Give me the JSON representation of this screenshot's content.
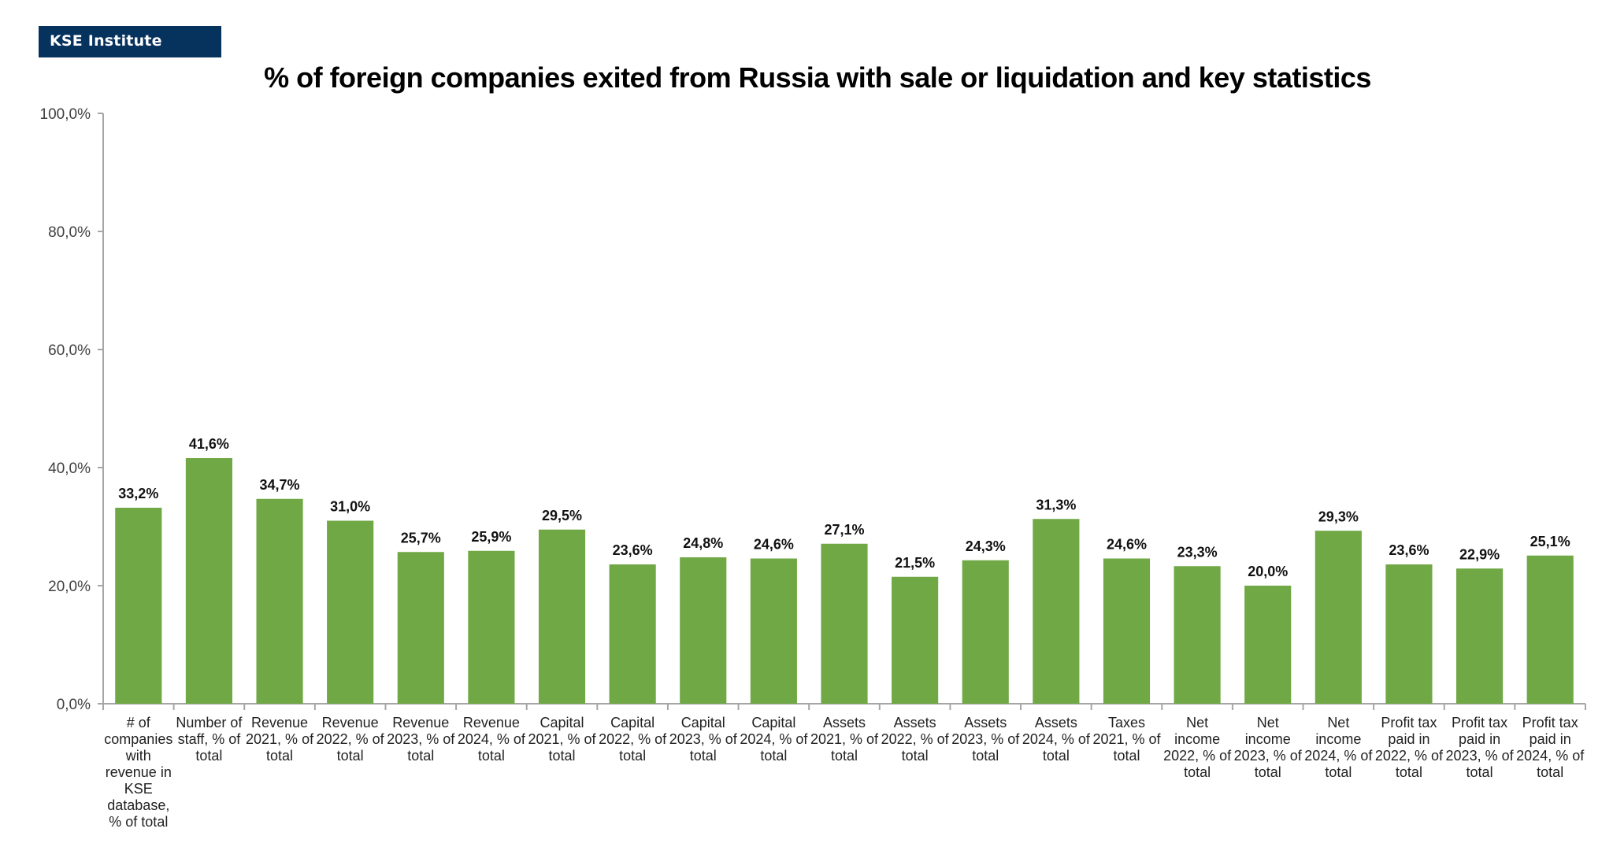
{
  "logo": {
    "text": "KSE Institute",
    "color": "#06325e"
  },
  "chart_data": {
    "type": "bar",
    "title": "% of foreign companies exited from Russia with sale or liquidation and key statistics",
    "xlabel": "",
    "ylabel": "",
    "ylim": [
      0,
      100
    ],
    "yticks": [
      0,
      20,
      40,
      60,
      80,
      100
    ],
    "ytick_labels": [
      "0,0%",
      "20,0%",
      "40,0%",
      "60,0%",
      "80,0%",
      "100,0%"
    ],
    "grid": false,
    "legend": "none",
    "bar_color": "#70a845",
    "categories": [
      [
        "# of",
        "companies",
        "with",
        "revenue in",
        "KSE",
        "database,",
        "% of total"
      ],
      [
        "Number of",
        "staff, % of",
        "total"
      ],
      [
        "Revenue",
        "2021, % of",
        "total"
      ],
      [
        "Revenue",
        "2022, % of",
        "total"
      ],
      [
        "Revenue",
        "2023, % of",
        "total"
      ],
      [
        "Revenue",
        "2024, % of",
        "total"
      ],
      [
        "Capital",
        "2021, % of",
        "total"
      ],
      [
        "Capital",
        "2022, % of",
        "total"
      ],
      [
        "Capital",
        "2023, % of",
        "total"
      ],
      [
        "Capital",
        "2024, % of",
        "total"
      ],
      [
        "Assets",
        "2021, % of",
        "total"
      ],
      [
        "Assets",
        "2022, % of",
        "total"
      ],
      [
        "Assets",
        "2023, % of",
        "total"
      ],
      [
        "Assets",
        "2024, % of",
        "total"
      ],
      [
        "Taxes",
        "2021, % of",
        "total"
      ],
      [
        "Net",
        "income",
        "2022, % of",
        "total"
      ],
      [
        "Net",
        "income",
        "2023, % of",
        "total"
      ],
      [
        "Net",
        "income",
        "2024, % of",
        "total"
      ],
      [
        "Profit tax",
        "paid in",
        "2022, % of",
        "total"
      ],
      [
        "Profit tax",
        "paid in",
        "2023, % of",
        "total"
      ],
      [
        "Profit tax",
        "paid in",
        "2024, % of",
        "total"
      ]
    ],
    "values": [
      33.2,
      41.6,
      34.7,
      31.0,
      25.7,
      25.9,
      29.5,
      23.6,
      24.8,
      24.6,
      27.1,
      21.5,
      24.3,
      31.3,
      24.6,
      23.3,
      20.0,
      29.3,
      23.6,
      22.9,
      25.1
    ],
    "data_labels": [
      "33,2%",
      "41,6%",
      "34,7%",
      "31,0%",
      "25,7%",
      "25,9%",
      "29,5%",
      "23,6%",
      "24,8%",
      "24,6%",
      "27,1%",
      "21,5%",
      "24,3%",
      "31,3%",
      "24,6%",
      "23,3%",
      "20,0%",
      "29,3%",
      "23,6%",
      "22,9%",
      "25,1%"
    ]
  }
}
